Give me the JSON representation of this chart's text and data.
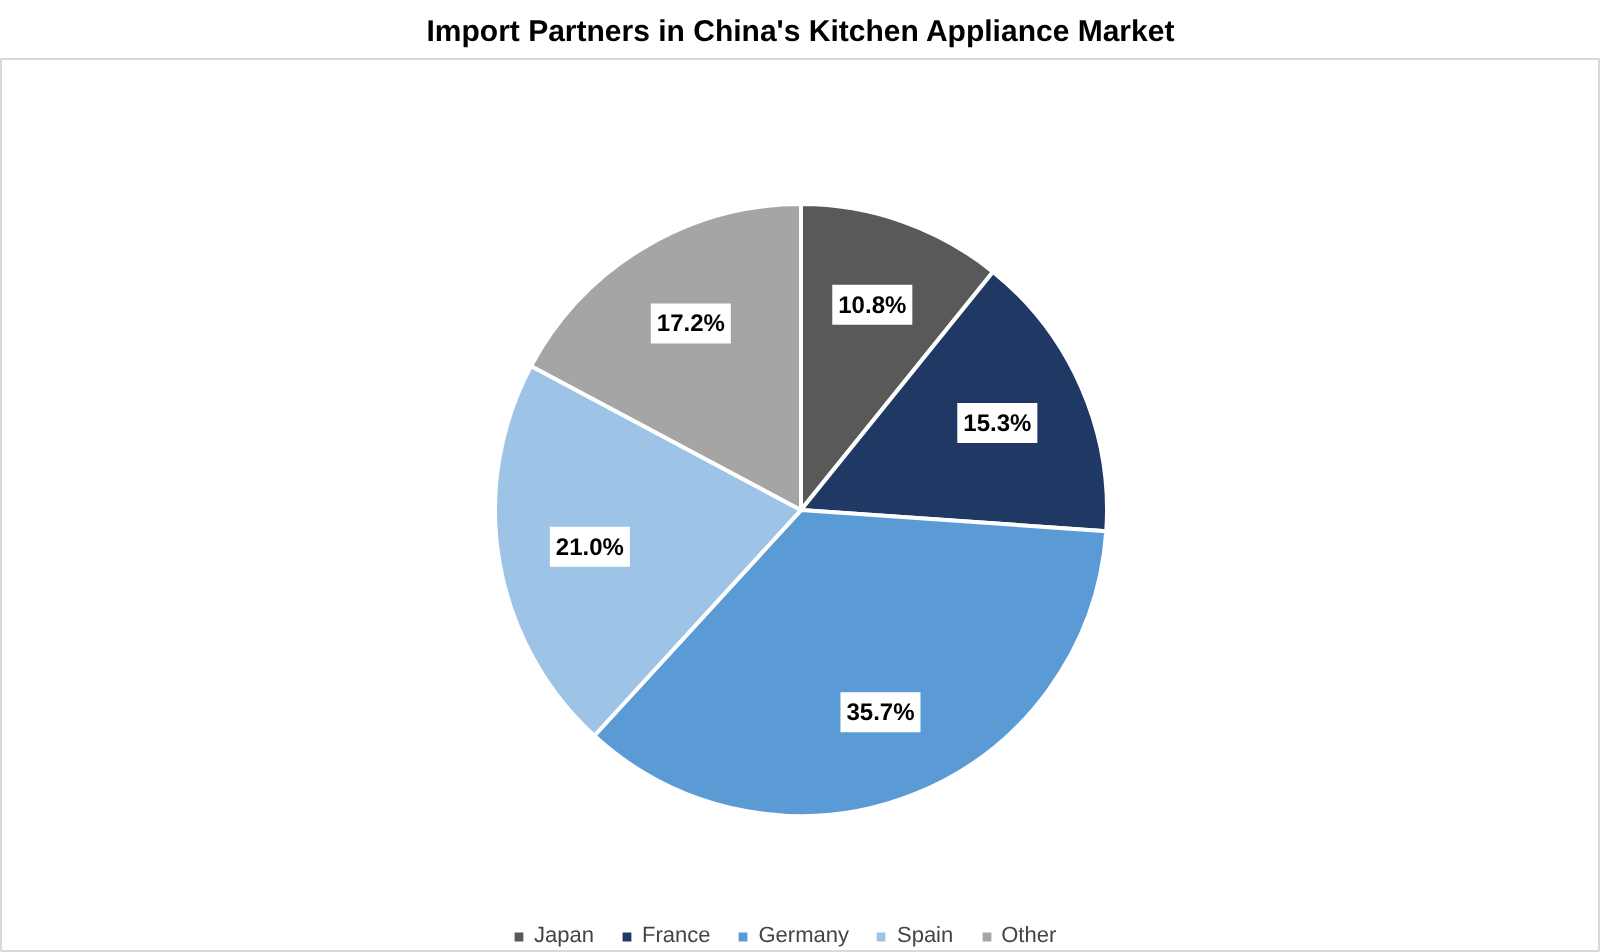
{
  "chart_data": {
    "type": "pie",
    "title": "Import Partners in China's Kitchen Appliance Market",
    "categories": [
      "Japan",
      "France",
      "Germany",
      "Spain",
      "Other"
    ],
    "values": [
      10.8,
      15.3,
      35.7,
      21.0,
      17.2
    ],
    "colors": [
      "#595959",
      "#203864",
      "#5b9bd5",
      "#9dc3e6",
      "#a5a5a5"
    ],
    "value_labels": [
      "10.8%",
      "15.3%",
      "35.7%",
      "21.0%",
      "17.2%"
    ],
    "legend": "bottom"
  }
}
